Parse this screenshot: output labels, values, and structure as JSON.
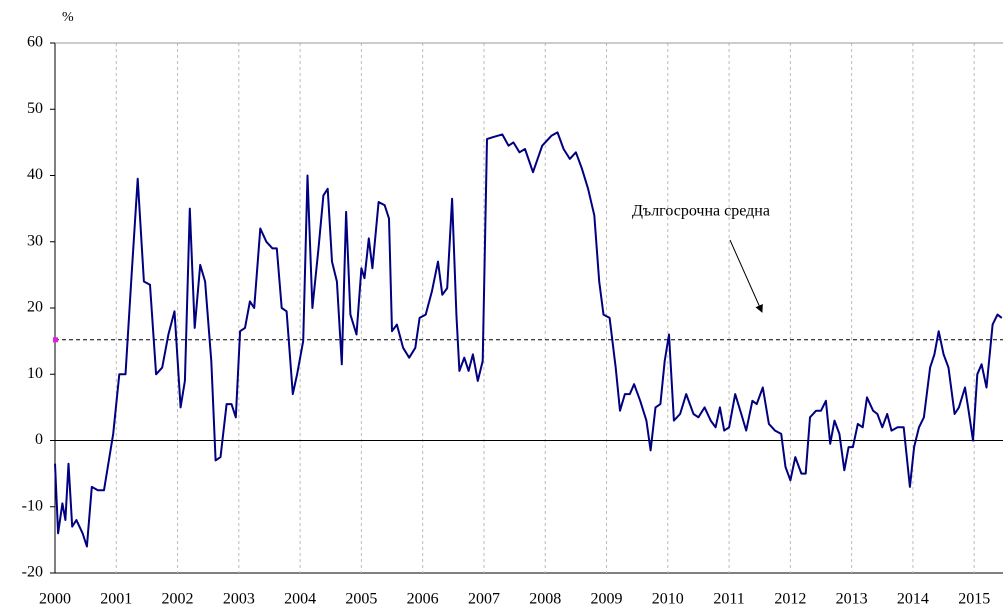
{
  "chart_data": {
    "type": "line",
    "y_label": "%",
    "color": "#000080",
    "x": [
      2000.0,
      2000.05,
      2000.12,
      2000.17,
      2000.22,
      2000.28,
      2000.35,
      2000.45,
      2000.52,
      2000.6,
      2000.7,
      2000.8,
      2000.95,
      2001.05,
      2001.15,
      2001.25,
      2001.35,
      2001.45,
      2001.55,
      2001.65,
      2001.75,
      2001.85,
      2001.95,
      2002.05,
      2002.12,
      2002.2,
      2002.28,
      2002.37,
      2002.45,
      2002.55,
      2002.62,
      2002.7,
      2002.8,
      2002.88,
      2002.95,
      2003.02,
      2003.1,
      2003.18,
      2003.25,
      2003.35,
      2003.45,
      2003.55,
      2003.62,
      2003.7,
      2003.78,
      2003.88,
      2003.95,
      2004.05,
      2004.12,
      2004.2,
      2004.3,
      2004.38,
      2004.45,
      2004.52,
      2004.6,
      2004.68,
      2004.75,
      2004.82,
      2004.92,
      2005.0,
      2005.05,
      2005.12,
      2005.18,
      2005.28,
      2005.38,
      2005.45,
      2005.5,
      2005.58,
      2005.68,
      2005.78,
      2005.88,
      2005.95,
      2006.05,
      2006.15,
      2006.25,
      2006.32,
      2006.4,
      2006.48,
      2006.55,
      2006.6,
      2006.68,
      2006.75,
      2006.82,
      2006.9,
      2006.98,
      2007.05,
      2007.15,
      2007.3,
      2007.4,
      2007.48,
      2007.58,
      2007.67,
      2007.8,
      2007.95,
      2008.1,
      2008.2,
      2008.3,
      2008.4,
      2008.5,
      2008.6,
      2008.7,
      2008.8,
      2008.88,
      2008.95,
      2009.05,
      2009.15,
      2009.22,
      2009.3,
      2009.38,
      2009.45,
      2009.55,
      2009.65,
      2009.72,
      2009.8,
      2009.88,
      2009.95,
      2010.02,
      2010.1,
      2010.2,
      2010.3,
      2010.42,
      2010.5,
      2010.6,
      2010.7,
      2010.78,
      2010.85,
      2010.92,
      2011.0,
      2011.1,
      2011.2,
      2011.28,
      2011.38,
      2011.45,
      2011.55,
      2011.65,
      2011.75,
      2011.85,
      2011.92,
      2012.0,
      2012.08,
      2012.18,
      2012.25,
      2012.32,
      2012.42,
      2012.5,
      2012.58,
      2012.65,
      2012.72,
      2012.8,
      2012.88,
      2012.95,
      2013.02,
      2013.1,
      2013.18,
      2013.25,
      2013.35,
      2013.42,
      2013.5,
      2013.58,
      2013.65,
      2013.75,
      2013.85,
      2013.95,
      2014.02,
      2014.1,
      2014.18,
      2014.28,
      2014.35,
      2014.42,
      2014.5,
      2014.58,
      2014.68,
      2014.75,
      2014.85,
      2014.9,
      2014.98,
      2015.05,
      2015.12,
      2015.2,
      2015.3,
      2015.38,
      2015.45
    ],
    "values": [
      -3.5,
      -14,
      -9.5,
      -12,
      -3.5,
      -13,
      -12,
      -14,
      -16,
      -7,
      -7.5,
      -7.5,
      1,
      10,
      10,
      25,
      39.5,
      24,
      23.5,
      10,
      11,
      16,
      19.5,
      5,
      9,
      35,
      17,
      26.5,
      24,
      12,
      -3,
      -2.5,
      5.5,
      5.5,
      3.5,
      16.5,
      17,
      21,
      20,
      32,
      30,
      29,
      29,
      20,
      19.5,
      7,
      10,
      15,
      40,
      20,
      29,
      37,
      38,
      27,
      24,
      11.5,
      34.5,
      19,
      16,
      26,
      24.5,
      30.5,
      26,
      36,
      35.5,
      33.5,
      16.5,
      17.5,
      14,
      12.5,
      14,
      18.5,
      19,
      22.5,
      27,
      22,
      23,
      36.5,
      19,
      10.5,
      12.5,
      10.5,
      13,
      9,
      12,
      45.5,
      45.8,
      46.2,
      44.5,
      45,
      43.5,
      44,
      40.5,
      44.5,
      46,
      46.5,
      44,
      42.5,
      43.5,
      41,
      38,
      34,
      24,
      19,
      18.5,
      11,
      4.5,
      7,
      7,
      8.5,
      6,
      3,
      -1.5,
      5,
      5.5,
      12,
      16,
      3,
      4,
      7,
      4,
      3.5,
      5,
      3,
      2,
      5,
      1.5,
      2,
      7,
      4,
      1.5,
      6,
      5.5,
      8,
      2.5,
      1.5,
      1,
      -4,
      -6,
      -2.5,
      -5,
      -5,
      3.5,
      4.5,
      4.5,
      6,
      -0.5,
      3,
      1,
      -4.5,
      -1,
      -1,
      2.5,
      2,
      6.5,
      4.5,
      4,
      2,
      4,
      1.5,
      2,
      2,
      -7,
      -1,
      2,
      3.5,
      11,
      13,
      16.5,
      13,
      11,
      4,
      5,
      8,
      5,
      0,
      10,
      11.5,
      8,
      17.5,
      19,
      18.5
    ],
    "average": {
      "label": "Дългосрочна средна",
      "value": 15.2
    },
    "xlim": [
      2000,
      2015.47
    ],
    "xticks": [
      2000,
      2001,
      2002,
      2003,
      2004,
      2005,
      2006,
      2007,
      2008,
      2009,
      2010,
      2011,
      2012,
      2013,
      2014,
      2015
    ],
    "ylim": [
      -20,
      60
    ],
    "yticks": [
      -20,
      -10,
      0,
      10,
      20,
      30,
      40,
      50,
      60
    ]
  }
}
